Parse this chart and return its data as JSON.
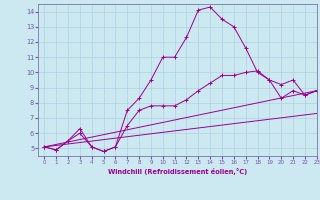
{
  "lines": [
    {
      "x": [
        0,
        1,
        2,
        3,
        4,
        5,
        6,
        7,
        8,
        9,
        10,
        11,
        12,
        13,
        14,
        15,
        16,
        17,
        18,
        19,
        20,
        21,
        22,
        23
      ],
      "y": [
        5.1,
        4.9,
        5.5,
        6.3,
        5.1,
        4.8,
        5.1,
        7.5,
        8.3,
        9.5,
        11.0,
        11.0,
        12.3,
        14.1,
        14.3,
        13.5,
        13.0,
        11.6,
        10.0,
        9.5,
        8.3,
        8.8,
        8.5,
        8.8
      ],
      "color": "#990099",
      "marker": "+"
    },
    {
      "x": [
        0,
        1,
        2,
        3,
        4,
        5,
        6,
        7,
        8,
        9,
        10,
        11,
        12,
        13,
        14,
        15,
        16,
        17,
        18,
        19,
        20,
        21,
        22,
        23
      ],
      "y": [
        5.1,
        4.9,
        5.5,
        6.0,
        5.1,
        4.8,
        5.1,
        6.5,
        7.5,
        7.8,
        7.8,
        7.8,
        8.2,
        8.8,
        9.3,
        9.8,
        9.8,
        10.0,
        10.1,
        9.5,
        9.2,
        9.5,
        8.5,
        8.8
      ],
      "color": "#990099",
      "marker": "+"
    },
    {
      "x": [
        0,
        23
      ],
      "y": [
        5.1,
        8.8
      ],
      "color": "#990099",
      "marker": null
    },
    {
      "x": [
        0,
        23
      ],
      "y": [
        5.1,
        7.3
      ],
      "color": "#990099",
      "marker": null
    }
  ],
  "xlim": [
    -0.5,
    23
  ],
  "ylim": [
    4.5,
    14.5
  ],
  "yticks": [
    5,
    6,
    7,
    8,
    9,
    10,
    11,
    12,
    13,
    14
  ],
  "xticks": [
    0,
    1,
    2,
    3,
    4,
    5,
    6,
    7,
    8,
    9,
    10,
    11,
    12,
    13,
    14,
    15,
    16,
    17,
    18,
    19,
    20,
    21,
    22,
    23
  ],
  "xlabel": "Windchill (Refroidissement éolien,°C)",
  "bg_color": "#cce8f0",
  "grid_color": "#aaccdd",
  "line_color": "#990099",
  "spine_color": "#7777aa",
  "tick_color": "#7755aa"
}
